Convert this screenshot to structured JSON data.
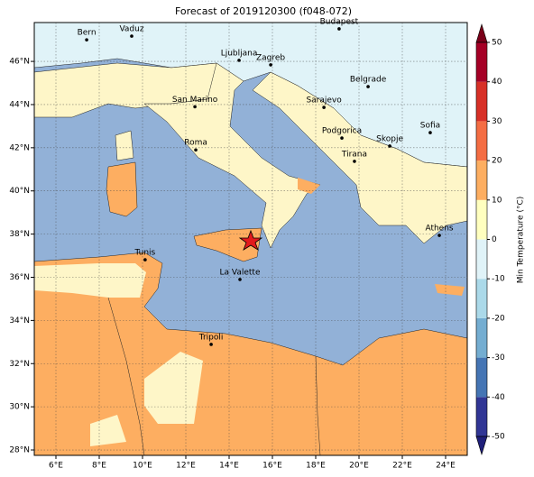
{
  "title": "Forecast of 2019120300 (f048-072)",
  "map": {
    "xlim": [
      5,
      25
    ],
    "ylim": [
      27.75,
      47.8
    ],
    "xticks": [
      {
        "value": 6,
        "label": "6°E"
      },
      {
        "value": 8,
        "label": "8°E"
      },
      {
        "value": 10,
        "label": "10°E"
      },
      {
        "value": 12,
        "label": "12°E"
      },
      {
        "value": 14,
        "label": "14°E"
      },
      {
        "value": 16,
        "label": "16°E"
      },
      {
        "value": 18,
        "label": "18°E"
      },
      {
        "value": 20,
        "label": "20°E"
      },
      {
        "value": 22,
        "label": "22°E"
      },
      {
        "value": 24,
        "label": "24°E"
      }
    ],
    "yticks": [
      {
        "value": 28,
        "label": "28°N"
      },
      {
        "value": 30,
        "label": "30°N"
      },
      {
        "value": 32,
        "label": "32°N"
      },
      {
        "value": 34,
        "label": "34°N"
      },
      {
        "value": 36,
        "label": "36°N"
      },
      {
        "value": 38,
        "label": "38°N"
      },
      {
        "value": 40,
        "label": "40°N"
      },
      {
        "value": 42,
        "label": "42°N"
      },
      {
        "value": 44,
        "label": "44°N"
      },
      {
        "value": 46,
        "label": "46°N"
      }
    ],
    "grid": true
  },
  "cities": [
    {
      "name": "Bern",
      "lon": 7.42,
      "lat": 47.0
    },
    {
      "name": "Vaduz",
      "lon": 9.5,
      "lat": 47.17
    },
    {
      "name": "Budapest",
      "lon": 19.08,
      "lat": 47.51
    },
    {
      "name": "Ljubljana",
      "lon": 14.46,
      "lat": 46.05
    },
    {
      "name": "Zagreb",
      "lon": 15.92,
      "lat": 45.84
    },
    {
      "name": "San Marino",
      "lon": 12.42,
      "lat": 43.9
    },
    {
      "name": "Sarajevo",
      "lon": 18.38,
      "lat": 43.87
    },
    {
      "name": "Belgrade",
      "lon": 20.42,
      "lat": 44.83
    },
    {
      "name": "Sofia",
      "lon": 23.29,
      "lat": 42.7
    },
    {
      "name": "Roma",
      "lon": 12.46,
      "lat": 41.9
    },
    {
      "name": "Podgorica",
      "lon": 19.21,
      "lat": 42.45
    },
    {
      "name": "Skopje",
      "lon": 21.42,
      "lat": 42.08
    },
    {
      "name": "Tirana",
      "lon": 19.79,
      "lat": 41.37
    },
    {
      "name": "Athens",
      "lon": 23.71,
      "lat": 37.94
    },
    {
      "name": "Tunis",
      "lon": 10.12,
      "lat": 36.81
    },
    {
      "name": "La Valette",
      "lon": 14.5,
      "lat": 35.9
    },
    {
      "name": "Tripoli",
      "lon": 13.17,
      "lat": 32.89
    }
  ],
  "colorbar": {
    "label": "Min Temperature (°C)",
    "lim": [
      -50,
      50
    ],
    "yticks": [
      -50,
      -40,
      -30,
      -20,
      -10,
      0,
      10,
      20,
      30,
      40,
      50
    ],
    "colors": [
      "#313695",
      "#4575b4",
      "#74add1",
      "#abd9e9",
      "#e0f3f8",
      "#ffffbf",
      "#fdae61",
      "#f46d43",
      "#d73027",
      "#a50026"
    ],
    "under_color": "#1f1f7a",
    "over_color": "#7a0019"
  }
}
